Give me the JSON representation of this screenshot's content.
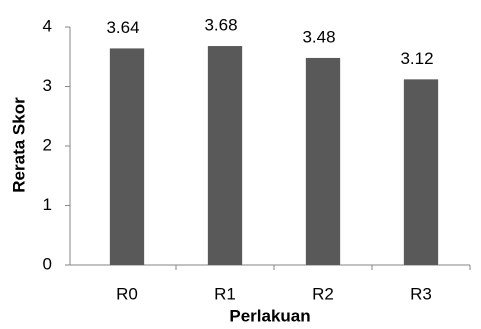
{
  "chart_data": {
    "type": "bar",
    "categories": [
      "R0",
      "R1",
      "R2",
      "R3"
    ],
    "values": [
      3.64,
      3.68,
      3.48,
      3.12
    ],
    "color": "#595959",
    "xlabel": "Perlakuan",
    "ylabel": "Rerata Skor",
    "ylim": [
      0,
      4
    ],
    "yticks": [
      0,
      1,
      2,
      3,
      4
    ],
    "grid": false
  }
}
